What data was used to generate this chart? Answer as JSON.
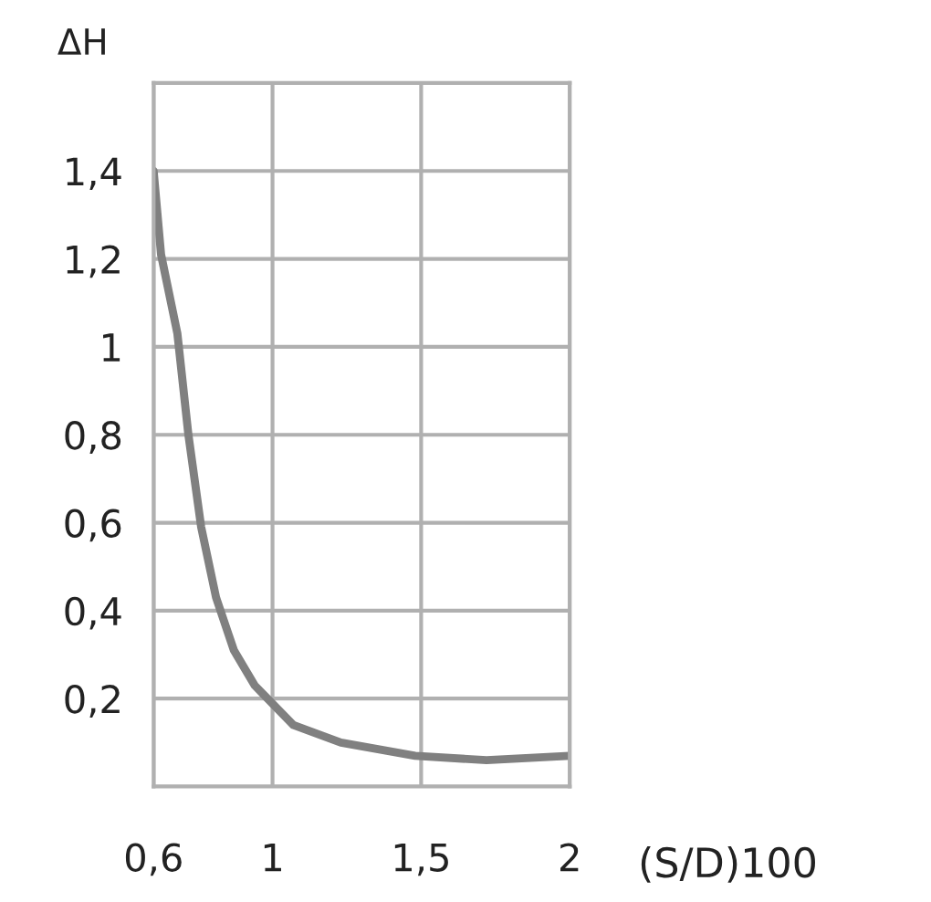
{
  "chart_data": {
    "type": "line",
    "xlabel": "(S/D)100",
    "ylabel": "ΔH",
    "x": [
      0.6,
      0.625,
      0.68,
      0.717,
      0.76,
      0.81,
      0.87,
      0.94,
      1.07,
      1.23,
      1.48,
      1.72,
      2.0
    ],
    "series": [
      {
        "color": "#808080",
        "values": [
          1.4,
          1.21,
          1.03,
          0.8,
          0.59,
          0.43,
          0.31,
          0.23,
          0.14,
          0.1,
          0.07,
          0.06,
          0.07
        ]
      }
    ],
    "xlim": [
      0.6,
      2
    ],
    "ylim": [
      0,
      1.6
    ],
    "xticks": [
      {
        "value": 0.6,
        "label": "0,6"
      },
      1,
      {
        "value": 1.5,
        "label": "1,5"
      },
      2
    ],
    "yticks": [
      {
        "value": 0,
        "label": null
      },
      {
        "value": 0.2,
        "label": "0,2"
      },
      {
        "value": 0.4,
        "label": "0,4"
      },
      {
        "value": 0.6,
        "label": "0,6"
      },
      {
        "value": 0.8,
        "label": "0,8"
      },
      1,
      {
        "value": 1.2,
        "label": "1,2"
      },
      {
        "value": 1.4,
        "label": "1,4"
      },
      {
        "value": 1.6,
        "label": null
      }
    ],
    "grid": true,
    "marker": "none",
    "line_style": "solid"
  }
}
